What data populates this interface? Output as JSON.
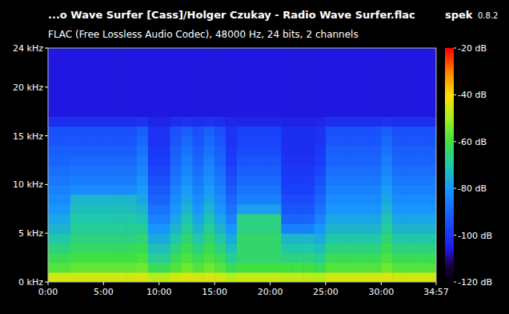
{
  "chart_data": {
    "type": "heatmap",
    "title": "...o Wave Surfer [Cass]/Holger Czukay - Radio Wave Surfer.flac",
    "subtitle": "FLAC (Free Lossless Audio Codec), 48000 Hz, 24 bits, 2 channels",
    "annotations": [
      "spek",
      "0.8.2"
    ],
    "xlim": [
      0,
      2097
    ],
    "xticks": [
      {
        "value": 0,
        "label": "0:00"
      },
      {
        "value": 300,
        "label": "5:00"
      },
      {
        "value": 600,
        "label": "10:00"
      },
      {
        "value": 900,
        "label": "15:00"
      },
      {
        "value": 1200,
        "label": "20:00"
      },
      {
        "value": 1500,
        "label": "25:00"
      },
      {
        "value": 1800,
        "label": "30:00"
      },
      {
        "value": 2097,
        "label": "34:57"
      }
    ],
    "ylim": [
      0,
      24
    ],
    "yticks": [
      {
        "value": 0,
        "label": "0 kHz"
      },
      {
        "value": 5,
        "label": "5 kHz"
      },
      {
        "value": 10,
        "label": "10 kHz"
      },
      {
        "value": 15,
        "label": "15 kHz"
      },
      {
        "value": 20,
        "label": "20 kHz"
      },
      {
        "value": 24,
        "label": "24 kHz"
      }
    ],
    "color_range": [
      -120,
      -20
    ],
    "color_ticks": [
      {
        "value": -20,
        "label": "-20 dB"
      },
      {
        "value": -40,
        "label": "-40 dB"
      },
      {
        "value": -60,
        "label": "-60 dB"
      },
      {
        "value": -80,
        "label": "-80 dB"
      },
      {
        "value": -100,
        "label": "-100 dB"
      },
      {
        "value": -120,
        "label": "-120 dB"
      }
    ],
    "x_edges": [
      0,
      60,
      120,
      180,
      240,
      300,
      360,
      420,
      480,
      540,
      600,
      660,
      720,
      780,
      840,
      900,
      960,
      1020,
      1080,
      1140,
      1200,
      1260,
      1320,
      1380,
      1440,
      1500,
      1560,
      1620,
      1680,
      1740,
      1800,
      1860,
      1920,
      1980,
      2040,
      2097
    ],
    "y_edges": [
      0,
      1,
      2,
      3,
      4,
      5,
      6,
      7,
      8,
      9,
      10,
      11,
      12,
      13,
      14,
      15,
      16,
      17,
      24
    ],
    "cells": [
      [
        -45,
        -58,
        -62,
        -66,
        -70,
        -74,
        -77,
        -80,
        -82,
        -84,
        -86,
        -88,
        -90,
        -91,
        -93,
        -94,
        -101,
        -106
      ],
      [
        -45,
        -58,
        -62,
        -66,
        -70,
        -74,
        -77,
        -80,
        -82,
        -84,
        -86,
        -88,
        -90,
        -91,
        -93,
        -94,
        -101,
        -106
      ],
      [
        -45,
        -56,
        -60,
        -63,
        -66,
        -68,
        -70,
        -72,
        -74,
        -82,
        -85,
        -87,
        -89,
        -91,
        -93,
        -94,
        -101,
        -106
      ],
      [
        -45,
        -56,
        -60,
        -63,
        -66,
        -68,
        -70,
        -72,
        -74,
        -82,
        -85,
        -87,
        -89,
        -91,
        -93,
        -94,
        -101,
        -106
      ],
      [
        -45,
        -56,
        -60,
        -63,
        -66,
        -68,
        -70,
        -72,
        -74,
        -82,
        -85,
        -87,
        -89,
        -91,
        -93,
        -94,
        -101,
        -106
      ],
      [
        -45,
        -56,
        -60,
        -63,
        -66,
        -68,
        -70,
        -72,
        -74,
        -82,
        -85,
        -87,
        -89,
        -91,
        -93,
        -94,
        -101,
        -106
      ],
      [
        -45,
        -56,
        -60,
        -63,
        -66,
        -68,
        -70,
        -72,
        -74,
        -82,
        -85,
        -87,
        -89,
        -91,
        -93,
        -94,
        -101,
        -106
      ],
      [
        -45,
        -56,
        -60,
        -63,
        -66,
        -68,
        -70,
        -72,
        -74,
        -82,
        -85,
        -87,
        -89,
        -91,
        -93,
        -94,
        -101,
        -106
      ],
      [
        -44,
        -55,
        -59,
        -62,
        -65,
        -68,
        -71,
        -74,
        -77,
        -79,
        -81,
        -83,
        -85,
        -87,
        -89,
        -91,
        -100,
        -106
      ],
      [
        -48,
        -62,
        -68,
        -72,
        -76,
        -80,
        -84,
        -87,
        -90,
        -92,
        -94,
        -96,
        -98,
        -99,
        -100,
        -100,
        -103,
        -106
      ],
      [
        -48,
        -62,
        -68,
        -72,
        -76,
        -80,
        -84,
        -87,
        -90,
        -92,
        -94,
        -96,
        -98,
        -99,
        -100,
        -100,
        -103,
        -106
      ],
      [
        -45,
        -58,
        -62,
        -66,
        -70,
        -74,
        -77,
        -80,
        -82,
        -84,
        -86,
        -88,
        -90,
        -91,
        -93,
        -94,
        -101,
        -106
      ],
      [
        -44,
        -55,
        -59,
        -62,
        -65,
        -68,
        -71,
        -74,
        -77,
        -79,
        -81,
        -83,
        -85,
        -87,
        -89,
        -91,
        -100,
        -106
      ],
      [
        -45,
        -58,
        -62,
        -66,
        -70,
        -74,
        -77,
        -80,
        -82,
        -84,
        -86,
        -88,
        -90,
        -91,
        -93,
        -94,
        -101,
        -106
      ],
      [
        -44,
        -55,
        -59,
        -62,
        -65,
        -68,
        -71,
        -74,
        -77,
        -79,
        -81,
        -83,
        -85,
        -87,
        -89,
        -91,
        -100,
        -106
      ],
      [
        -45,
        -58,
        -62,
        -66,
        -70,
        -74,
        -77,
        -80,
        -82,
        -84,
        -86,
        -88,
        -90,
        -91,
        -93,
        -94,
        -101,
        -106
      ],
      [
        -48,
        -62,
        -68,
        -72,
        -76,
        -80,
        -84,
        -87,
        -90,
        -92,
        -94,
        -96,
        -98,
        -99,
        -100,
        -100,
        -103,
        -106
      ],
      [
        -46,
        -60,
        -64,
        -64,
        -64,
        -66,
        -66,
        -78,
        -84,
        -87,
        -89,
        -91,
        -93,
        -95,
        -96,
        -97,
        -103,
        -106
      ],
      [
        -46,
        -60,
        -64,
        -64,
        -64,
        -66,
        -66,
        -78,
        -84,
        -87,
        -89,
        -91,
        -93,
        -95,
        -96,
        -97,
        -103,
        -106
      ],
      [
        -46,
        -60,
        -64,
        -64,
        -64,
        -66,
        -66,
        -78,
        -84,
        -87,
        -89,
        -91,
        -93,
        -95,
        -96,
        -97,
        -103,
        -106
      ],
      [
        -46,
        -60,
        -64,
        -64,
        -64,
        -66,
        -66,
        -78,
        -84,
        -87,
        -89,
        -91,
        -93,
        -95,
        -96,
        -97,
        -103,
        -106
      ],
      [
        -47,
        -60,
        -66,
        -70,
        -74,
        -84,
        -90,
        -93,
        -95,
        -97,
        -98,
        -99,
        -100,
        -101,
        -101,
        -101,
        -104,
        -106
      ],
      [
        -47,
        -60,
        -66,
        -70,
        -74,
        -84,
        -90,
        -93,
        -95,
        -97,
        -98,
        -99,
        -100,
        -101,
        -101,
        -101,
        -104,
        -106
      ],
      [
        -47,
        -60,
        -66,
        -70,
        -74,
        -84,
        -90,
        -93,
        -95,
        -97,
        -98,
        -99,
        -100,
        -101,
        -101,
        -101,
        -104,
        -106
      ],
      [
        -48,
        -62,
        -68,
        -72,
        -76,
        -80,
        -84,
        -87,
        -90,
        -92,
        -94,
        -96,
        -98,
        -99,
        -100,
        -100,
        -103,
        -106
      ],
      [
        -45,
        -58,
        -62,
        -66,
        -70,
        -74,
        -77,
        -80,
        -82,
        -84,
        -86,
        -88,
        -90,
        -91,
        -93,
        -94,
        -101,
        -106
      ],
      [
        -45,
        -58,
        -62,
        -66,
        -70,
        -74,
        -77,
        -80,
        -82,
        -84,
        -86,
        -88,
        -90,
        -91,
        -93,
        -94,
        -101,
        -106
      ],
      [
        -45,
        -58,
        -62,
        -66,
        -70,
        -74,
        -77,
        -80,
        -82,
        -84,
        -86,
        -88,
        -90,
        -91,
        -93,
        -94,
        -101,
        -106
      ],
      [
        -45,
        -58,
        -62,
        -66,
        -70,
        -74,
        -77,
        -80,
        -82,
        -84,
        -86,
        -88,
        -90,
        -91,
        -93,
        -94,
        -101,
        -106
      ],
      [
        -45,
        -58,
        -62,
        -66,
        -70,
        -74,
        -77,
        -80,
        -82,
        -84,
        -86,
        -88,
        -90,
        -91,
        -93,
        -94,
        -101,
        -106
      ],
      [
        -44,
        -55,
        -59,
        -62,
        -65,
        -68,
        -71,
        -74,
        -77,
        -79,
        -81,
        -83,
        -85,
        -87,
        -89,
        -91,
        -100,
        -106
      ],
      [
        -45,
        -58,
        -62,
        -66,
        -70,
        -74,
        -77,
        -80,
        -82,
        -84,
        -86,
        -88,
        -90,
        -91,
        -93,
        -94,
        -101,
        -106
      ],
      [
        -45,
        -58,
        -62,
        -66,
        -70,
        -74,
        -77,
        -80,
        -82,
        -84,
        -86,
        -88,
        -90,
        -91,
        -93,
        -94,
        -101,
        -106
      ],
      [
        -45,
        -58,
        -62,
        -66,
        -70,
        -74,
        -77,
        -80,
        -82,
        -84,
        -86,
        -88,
        -90,
        -91,
        -93,
        -94,
        -101,
        -106
      ],
      [
        -45,
        -58,
        -62,
        -66,
        -70,
        -74,
        -77,
        -80,
        -82,
        -84,
        -86,
        -88,
        -90,
        -91,
        -93,
        -94,
        -101,
        -106
      ]
    ]
  }
}
